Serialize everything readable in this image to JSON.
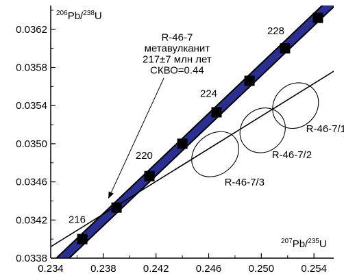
{
  "chart_data": {
    "type": "scatter",
    "title": "",
    "xlabel": {
      "pre": "207",
      "base": "Pb/",
      "sup": "235",
      "tail": "U"
    },
    "ylabel": {
      "pre": "206",
      "base": "Pb/",
      "sup": "238",
      "tail": "U"
    },
    "xlim": [
      0.234,
      0.2555
    ],
    "ylim": [
      0.0338,
      0.03645
    ],
    "x_ticks": [
      0.234,
      0.238,
      0.242,
      0.246,
      0.25,
      0.254
    ],
    "x_tick_labels": [
      "0.234",
      "0.238",
      "0.242",
      "0.246",
      "0.250",
      "0.254"
    ],
    "y_ticks": [
      0.0338,
      0.0342,
      0.0346,
      0.035,
      0.0354,
      0.0358,
      0.0362
    ],
    "y_tick_labels": [
      "0.0338",
      "0.0342",
      "0.0346",
      "0.0350",
      "0.0354",
      "0.0358",
      "0.0362"
    ],
    "grid": false,
    "concordia": {
      "color": "#2b2f8f",
      "outline": "#000000",
      "start": [
        0.234,
        0.03368
      ],
      "end": [
        0.2555,
        0.0365
      ]
    },
    "age_markers": [
      {
        "x": 0.2364,
        "y": 0.034
      },
      {
        "x": 0.239,
        "y": 0.03433
      },
      {
        "x": 0.2415,
        "y": 0.03466
      },
      {
        "x": 0.244,
        "y": 0.035
      },
      {
        "x": 0.2466,
        "y": 0.03533
      },
      {
        "x": 0.2491,
        "y": 0.03566
      },
      {
        "x": 0.2518,
        "y": 0.036
      },
      {
        "x": 0.2543,
        "y": 0.03632
      }
    ],
    "age_labels": [
      {
        "text": "216",
        "x": 0.236,
        "y": 0.03417
      },
      {
        "text": "220",
        "x": 0.2411,
        "y": 0.03484
      },
      {
        "text": "224",
        "x": 0.246,
        "y": 0.03549
      },
      {
        "text": "228",
        "x": 0.2511,
        "y": 0.03615
      }
    ],
    "discordia": {
      "color": "#000000",
      "start": [
        0.234,
        0.03392
      ],
      "end": [
        0.2555,
        0.03576
      ]
    },
    "ellipses": [
      {
        "label": "R-46-7/1",
        "cx": 0.2526,
        "cy": 0.0354,
        "rx": 0.00185,
        "ry": 0.0003,
        "angle_deg": -44,
        "label_x": 0.2534,
        "label_y": 0.03512
      },
      {
        "label": "R-46-7/2",
        "cx": 0.2501,
        "cy": 0.03514,
        "rx": 0.0018,
        "ry": 0.0003,
        "angle_deg": -42,
        "label_x": 0.2508,
        "label_y": 0.03485
      },
      {
        "label": "R-46-7/3",
        "cx": 0.2465,
        "cy": 0.03489,
        "rx": 0.00195,
        "ry": 0.00028,
        "angle_deg": -40,
        "label_x": 0.2472,
        "label_y": 0.03456
      }
    ],
    "annotation": {
      "lines": [
        "R-46-7",
        "метавулканит",
        "217±7 млн лет",
        "СКВО=0.44"
      ],
      "text_x": 0.2436,
      "text_y": 0.03608,
      "arrow_from": [
        0.2426,
        0.03569
      ],
      "arrow_to": [
        0.2384,
        0.03443
      ]
    }
  }
}
